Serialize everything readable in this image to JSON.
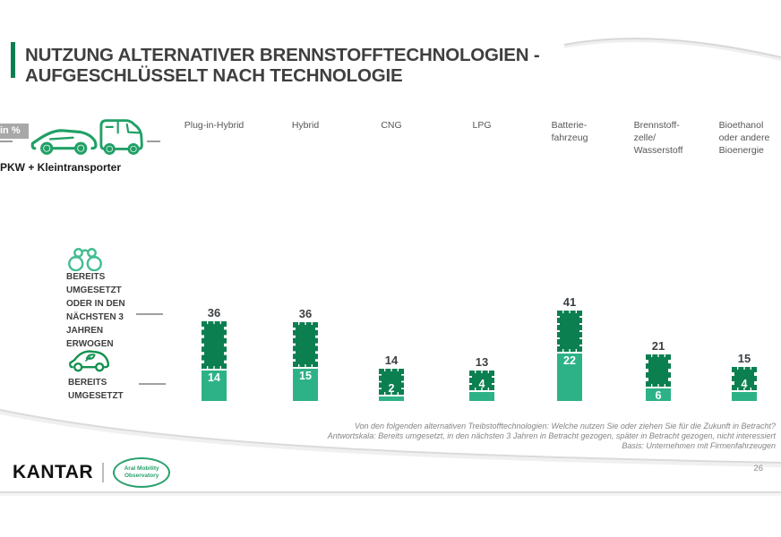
{
  "header": {
    "title_line1": "NUTZUNG ALTERNATIVER BRENNSTOFFTECHNOLOGIEN -",
    "title_line2": "AUFGESCHLÜSSELT NACH TECHNOLOGIE"
  },
  "segment": {
    "unit_badge": "in %",
    "label": "PKW + Kleintransporter"
  },
  "legend": {
    "considered_label_lines": [
      "BEREITS",
      "UMGESETZT",
      "ODER IN DEN",
      "NÄCHSTEN 3",
      "JAHREN",
      "ERWOGEN"
    ],
    "implemented_label_lines": [
      "BEREITS",
      "UMGESETZT"
    ]
  },
  "chart_data": {
    "type": "bar",
    "stacked": true,
    "unit": "%",
    "categories": [
      "Plug-in-Hybrid",
      "Hybrid",
      "CNG",
      "LPG",
      "Batteriefahrzeug",
      "Brennstoffzelle/Wasserstoff",
      "Bioethanol oder andere Bioenergie"
    ],
    "category_lines": [
      [
        "Plug-in-Hybrid"
      ],
      [
        "Hybrid"
      ],
      [
        "CNG"
      ],
      [
        "LPG"
      ],
      [
        "Batterie-",
        "fahrzeug"
      ],
      [
        "Brennstoff-",
        "zelle/",
        "Wasserstoff"
      ],
      [
        "Bioethanol",
        "oder andere",
        "Bioenergie"
      ]
    ],
    "series": [
      {
        "name": "Bereits umgesetzt oder in den nächsten 3 Jahren erwogen (gesamt)",
        "values": [
          36,
          36,
          14,
          13,
          41,
          21,
          15
        ],
        "color": "#0c7f50",
        "cumulative": true
      },
      {
        "name": "Bereits umgesetzt",
        "values": [
          14,
          15,
          2,
          4,
          22,
          6,
          4
        ],
        "color": "#2db287"
      }
    ],
    "legend_position": "left",
    "grid": false
  },
  "footnote": {
    "line1": "Von den folgenden alternativen Treibstofftechnologien: Welche nutzen Sie oder ziehen Sie für die Zukunft in Betracht?",
    "line2": "Antwortskala: Bereits umgesetzt, in den nächsten 3 Jahren in Betracht gezogen, später in Betracht gezogen, nicht interessiert",
    "line3": "Basis: Unternehmen mit Firmenfahrzeugen"
  },
  "footer": {
    "brand": "KANTAR",
    "partner_line1": "Aral Mobility",
    "partner_line2": "Observatory",
    "page_number": "26"
  },
  "colors": {
    "considered_dark_green": "#0c7f50",
    "implemented_light_green": "#2db287",
    "icon_green": "#21a066",
    "badge_gray": "#a8a8a8"
  }
}
